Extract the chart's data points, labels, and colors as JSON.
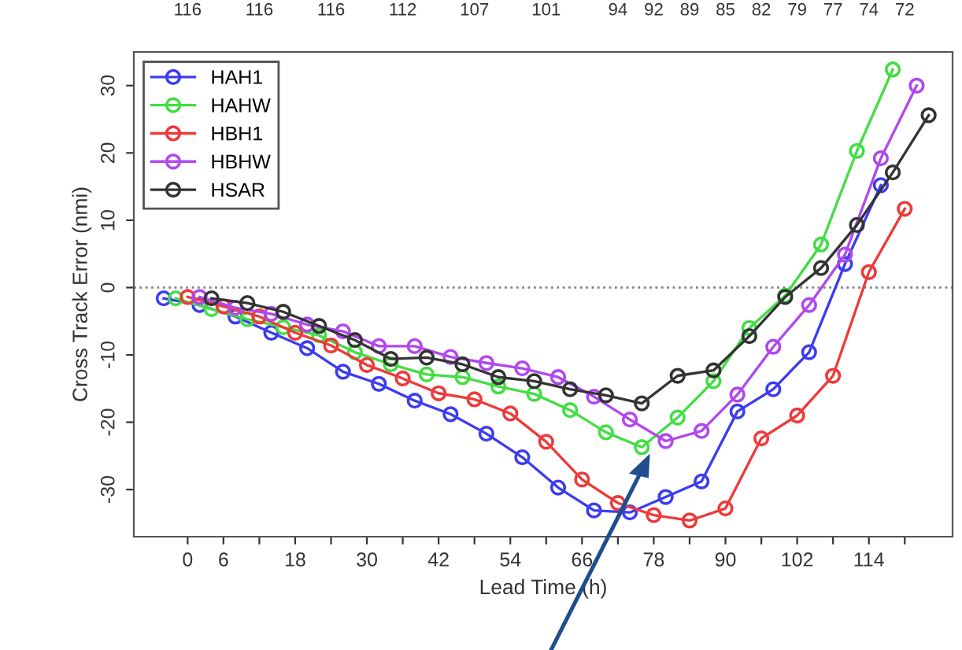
{
  "chart_data": {
    "type": "line",
    "xlabel": "Lead Time (h)",
    "ylabel": "Cross Track Error (nmi)",
    "xlim": [
      -9,
      128
    ],
    "ylim": [
      -37,
      35
    ],
    "xticks": [
      0,
      6,
      {
        "value": 12,
        "label": null
      },
      18,
      {
        "value": 24,
        "label": null
      },
      30,
      {
        "value": 36,
        "label": null
      },
      42,
      {
        "value": 48,
        "label": null
      },
      54,
      {
        "value": 60,
        "label": null
      },
      66,
      {
        "value": 72,
        "label": null
      },
      78,
      {
        "value": 84,
        "label": null
      },
      90,
      {
        "value": 96,
        "label": null
      },
      102,
      {
        "value": 108,
        "label": null
      },
      114,
      {
        "value": 120,
        "label": null
      }
    ],
    "yticks": [
      -30,
      -20,
      -10,
      0,
      10,
      20,
      30
    ],
    "annotations": [
      "116",
      "116",
      "116",
      "112",
      "107",
      "101",
      "94",
      "92",
      "89",
      "85",
      "82",
      "79",
      "77",
      "74",
      "72"
    ],
    "ref_lines": [
      {
        "axis": "y",
        "value": 0,
        "label": null,
        "color": "#808080",
        "line_style": "dotted"
      }
    ],
    "grid": false,
    "legend": "top left",
    "marker": "circle",
    "line_style": "solid",
    "series": [
      {
        "name": "HAH1",
        "color": "#3c3cf0",
        "x": [
          -4,
          2,
          8,
          14,
          20,
          26,
          32,
          38,
          44,
          50,
          56,
          62,
          68,
          74,
          80,
          86,
          92,
          98,
          104,
          110,
          116
        ],
        "values": [
          -1.6,
          -2.6,
          -4.3,
          -6.7,
          -9.0,
          -12.5,
          -14.3,
          -16.8,
          -18.8,
          -21.7,
          -25.2,
          -29.7,
          -33.1,
          -33.4,
          -31.1,
          -28.8,
          -18.4,
          -15.1,
          -9.6,
          3.5,
          15.2
        ]
      },
      {
        "name": "HAHW",
        "color": "#44dd44",
        "x": [
          -2,
          4,
          10,
          16,
          22,
          28,
          34,
          40,
          46,
          52,
          58,
          64,
          70,
          76,
          82,
          88,
          94,
          100,
          106,
          112,
          118
        ],
        "values": [
          -1.6,
          -3.2,
          -4.7,
          -5.9,
          -7.1,
          -9.6,
          -11.4,
          -12.9,
          -13.3,
          -14.7,
          -15.8,
          -18.2,
          -21.5,
          -23.7,
          -19.3,
          -13.9,
          -6.0,
          -1.2,
          6.4,
          20.3,
          32.4
        ]
      },
      {
        "name": "HBH1",
        "color": "#ee3a3a",
        "x": [
          0,
          6,
          12,
          18,
          24,
          30,
          36,
          42,
          48,
          54,
          60,
          66,
          72,
          78,
          84,
          90,
          96,
          102,
          108,
          114,
          120
        ],
        "values": [
          -1.4,
          -2.8,
          -4.3,
          -6.7,
          -8.6,
          -11.5,
          -13.5,
          -15.7,
          -16.6,
          -18.7,
          -22.9,
          -28.5,
          -32.0,
          -33.8,
          -34.6,
          -32.8,
          -22.4,
          -19.0,
          -13.1,
          2.3,
          11.7
        ]
      },
      {
        "name": "HBHW",
        "color": "#b048ee",
        "x": [
          2,
          8,
          14,
          20,
          26,
          32,
          38,
          44,
          50,
          56,
          62,
          68,
          74,
          80,
          86,
          92,
          98,
          104,
          110,
          116,
          122
        ],
        "values": [
          -1.4,
          -3.0,
          -3.9,
          -5.5,
          -6.5,
          -8.7,
          -8.7,
          -10.3,
          -11.2,
          -12.0,
          -13.3,
          -16.2,
          -19.6,
          -22.8,
          -21.3,
          -15.9,
          -8.8,
          -2.6,
          4.9,
          19.2,
          30.0
        ]
      },
      {
        "name": "HSAR",
        "color": "#333333",
        "x": [
          4,
          10,
          16,
          22,
          28,
          34,
          40,
          46,
          52,
          58,
          64,
          70,
          76,
          82,
          88,
          94,
          100,
          106,
          112,
          118,
          124
        ],
        "values": [
          -1.6,
          -2.3,
          -3.6,
          -5.7,
          -7.8,
          -10.6,
          -10.4,
          -11.4,
          -13.3,
          -13.9,
          -15.1,
          -16.0,
          -17.2,
          -13.1,
          -12.3,
          -7.2,
          -1.4,
          2.9,
          9.3,
          17.1,
          25.6
        ]
      }
    ]
  }
}
